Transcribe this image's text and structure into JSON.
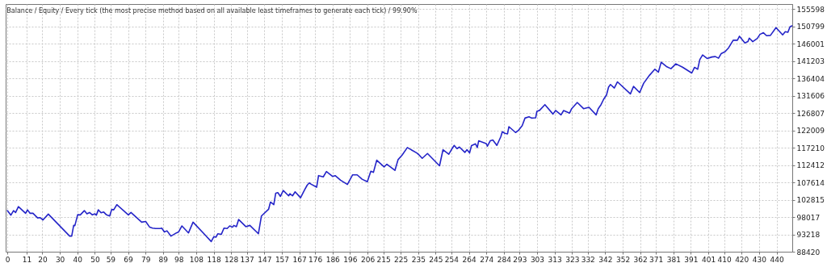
{
  "chart_data": {
    "type": "line",
    "title": "Balance / Equity / Every tick (the most precise method based on all available least timeframes to generate each tick) / 99.90%",
    "x": [
      0,
      2,
      3.5,
      4.7,
      6.3,
      10.4,
      11.5,
      13,
      14.5,
      17.3,
      18.8,
      20.3,
      23.4,
      35.6,
      36.8,
      37.9,
      38.6,
      40.2,
      41.7,
      44,
      45.5,
      47,
      48.6,
      50.1,
      50.9,
      52,
      53.6,
      55.1,
      56.7,
      58.5,
      59.7,
      60.8,
      62.6,
      69.2,
      70.7,
      76.8,
      79.1,
      81.4,
      83,
      84.8,
      87.5,
      88.3,
      89.8,
      91.3,
      93.6,
      96.7,
      97.9,
      99.8,
      103.6,
      106.2,
      116.6,
      118.1,
      119.3,
      120.4,
      122.4,
      123.9,
      125.7,
      127.2,
      128.8,
      129.5,
      131,
      132.3,
      136.4,
      138.7,
      143.6,
      145.3,
      149.4,
      150.5,
      152.4,
      153.5,
      154.7,
      156.2,
      157.8,
      160.9,
      161.6,
      163.1,
      164.6,
      167.7,
      170,
      171.5,
      172.7,
      173.8,
      176.9,
      178,
      180.7,
      182.5,
      186,
      187.5,
      190.6,
      194.5,
      197.5,
      200.1,
      202.9,
      205.9,
      207.9,
      209.4,
      211.3,
      215.5,
      217.1,
      221.7,
      223.5,
      225.8,
      228.8,
      234.2,
      235.4,
      237.3,
      240.3,
      247.2,
      249.2,
      252.5,
      254,
      255.6,
      257.2,
      258.6,
      261.7,
      262.9,
      264.4,
      265.5,
      267.8,
      268.8,
      269.6,
      273.9,
      274.6,
      276.2,
      277.7,
      280,
      282.3,
      283.1,
      284.6,
      286.1,
      286.9,
      290.7,
      292.2,
      294.5,
      296.1,
      298.4,
      299.9,
      302.2,
      302.9,
      304.4,
      307.5,
      312.1,
      313.6,
      316.7,
      318.2,
      321.6,
      322.8,
      326,
      329.6,
      332.7,
      336.8,
      338,
      339.6,
      341.1,
      342.7,
      343.9,
      345,
      347.2,
      349,
      356.4,
      358.2,
      361.7,
      364,
      367.4,
      370.4,
      372.4,
      374,
      377,
      379.6,
      382.4,
      386.2,
      391.5,
      393.1,
      394.9,
      396.1,
      397.7,
      400.4,
      403,
      405,
      406.8,
      408.3,
      410.6,
      412.6,
      415.2,
      417.6,
      418.8,
      421.9,
      423.6,
      424.4,
      426.4,
      429,
      430.5,
      432.5,
      434.3,
      436.5,
      439.7,
      443.5,
      445,
      446.5,
      447.7,
      448.8
    ],
    "series": [
      {
        "color": "#2424c8",
        "values": [
          99790,
          98540,
          99790,
          99280,
          100900,
          99050,
          100010,
          99050,
          99100,
          97780,
          97850,
          97200,
          98830,
          92740,
          92740,
          95710,
          95660,
          98670,
          98620,
          99790,
          98900,
          99270,
          98620,
          98900,
          98550,
          100010,
          99200,
          99400,
          98620,
          98300,
          100160,
          100010,
          101440,
          98620,
          99270,
          96600,
          96780,
          95210,
          94940,
          94840,
          94840,
          94940,
          93880,
          94200,
          92740,
          93630,
          93880,
          95560,
          93630,
          96600,
          91250,
          92590,
          92440,
          93400,
          93240,
          94960,
          94840,
          95560,
          95210,
          95710,
          95360,
          97330,
          95360,
          95710,
          93400,
          98300,
          100160,
          102170,
          101440,
          104630,
          104780,
          103740,
          105360,
          103890,
          104490,
          103890,
          105000,
          103360,
          105530,
          106850,
          107460,
          107100,
          106280,
          109490,
          109140,
          110610,
          109270,
          109490,
          108230,
          107050,
          109700,
          109700,
          108500,
          107790,
          110710,
          110400,
          113760,
          111910,
          112650,
          110940,
          113920,
          115170,
          117260,
          115760,
          115280,
          114280,
          115620,
          112210,
          116670,
          115400,
          116670,
          117850,
          116960,
          117410,
          115920,
          116670,
          115770,
          117780,
          118300,
          117260,
          119120,
          118380,
          117630,
          119120,
          119340,
          117850,
          120310,
          121650,
          121200,
          121050,
          123050,
          121420,
          121940,
          123340,
          125420,
          125800,
          125420,
          125500,
          127290,
          127540,
          129140,
          126540,
          127520,
          126310,
          127520,
          126810,
          128030,
          129750,
          128030,
          128400,
          126310,
          128030,
          129140,
          130640,
          131750,
          133980,
          134720,
          133760,
          135450,
          132110,
          134200,
          132490,
          135080,
          137320,
          138950,
          138140,
          140890,
          139690,
          139100,
          140440,
          139520,
          137900,
          139470,
          138940,
          141630,
          142900,
          141910,
          142340,
          142450,
          142000,
          143250,
          143800,
          144900,
          146970,
          146970,
          148080,
          146220,
          146590,
          147570,
          146590,
          147490,
          148600,
          149050,
          148230,
          148310,
          150470,
          148470,
          149360,
          149200,
          150700,
          150960
        ]
      }
    ],
    "xlim": [
      -1,
      449
    ],
    "xticks": [
      0,
      11,
      20,
      30,
      40,
      50,
      59,
      69,
      79,
      89,
      98,
      108,
      118,
      128,
      137,
      147,
      157,
      167,
      176,
      186,
      196,
      206,
      215,
      225,
      235,
      245,
      254,
      264,
      274,
      284,
      293,
      303,
      313,
      323,
      332,
      342,
      352,
      362,
      371,
      381,
      391,
      401,
      410,
      420,
      430,
      440
    ],
    "ylim": [
      88420,
      157000
    ],
    "yticks": [
      88420,
      93218,
      98017,
      102815,
      107614,
      112412,
      117210,
      122009,
      126807,
      131606,
      136404,
      141203,
      146001,
      150799,
      155598
    ],
    "grid": true,
    "marker": "none",
    "line_style": "solid"
  }
}
